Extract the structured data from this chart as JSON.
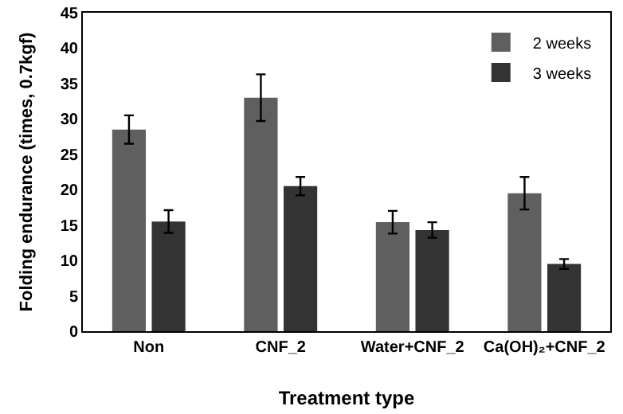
{
  "chart_data": {
    "type": "bar",
    "xlabel": "Treatment type",
    "ylabel": "Folding endurance (times, 0.7kgf)",
    "categories": [
      "Non",
      "CNF_2",
      "Water+CNF_2",
      "Ca(OH)₂+CNF_2"
    ],
    "series": [
      {
        "name": "2 weeks",
        "color": "#5f5f5f",
        "values": [
          28.5,
          33,
          15.4,
          19.5
        ],
        "errors": [
          2,
          3.3,
          1.6,
          2.3
        ]
      },
      {
        "name": "3 weeks",
        "color": "#333333",
        "values": [
          15.5,
          20.5,
          14.3,
          9.5
        ],
        "errors": [
          1.6,
          1.3,
          1.1,
          0.7
        ]
      }
    ],
    "ylim": [
      0,
      45
    ],
    "yticks": [
      0,
      5,
      10,
      15,
      20,
      25,
      30,
      35,
      40,
      45
    ],
    "grid": false,
    "legend": "top right"
  }
}
